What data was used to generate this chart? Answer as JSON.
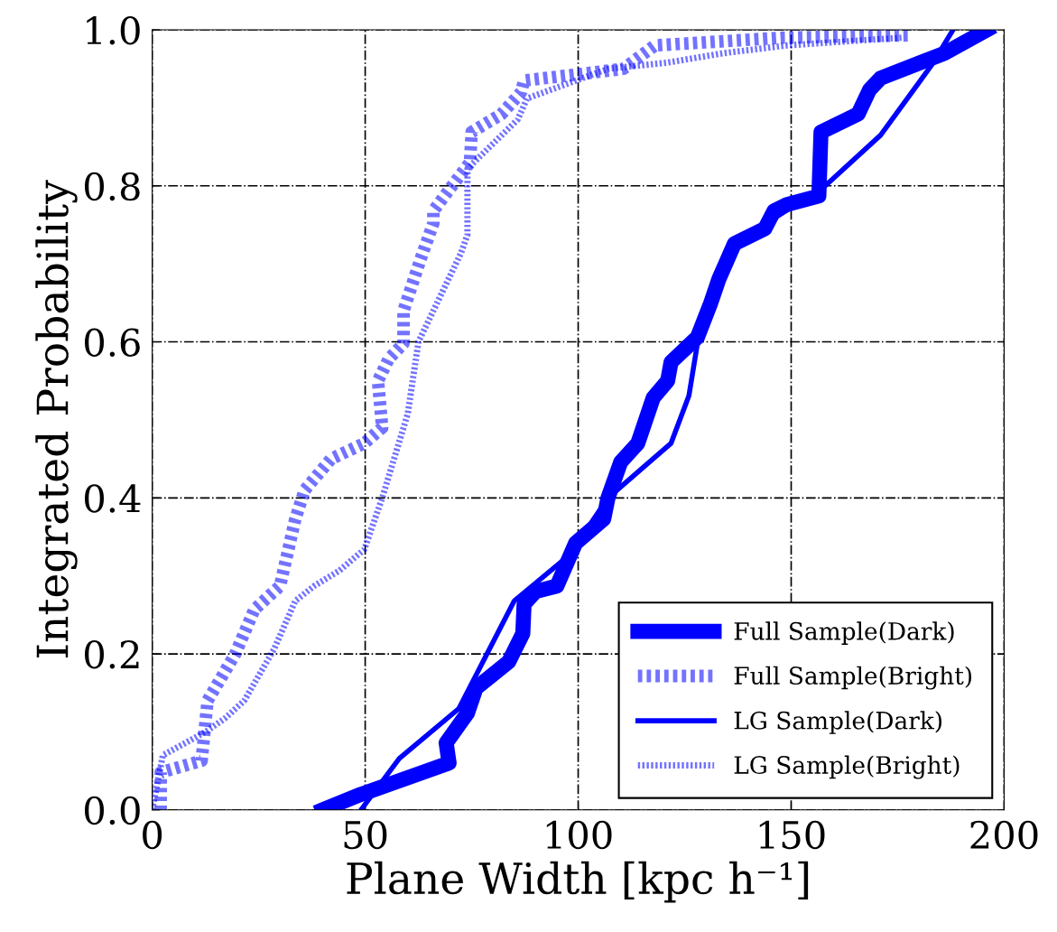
{
  "chart_data": {
    "type": "line",
    "xlabel": "Plane Width [kpc h⁻¹]",
    "ylabel": "Integrated Probability",
    "xlim": [
      0,
      200
    ],
    "ylim": [
      0,
      1.0
    ],
    "xticks": [
      0,
      50,
      100,
      150,
      200
    ],
    "yticks": [
      {
        "value": 0,
        "label": "0.0"
      },
      0.2,
      0.4,
      0.6,
      0.8,
      {
        "value": 1,
        "label": "1.0"
      }
    ],
    "grid": true,
    "legend": "bottom right",
    "marker": "none",
    "series": [
      {
        "name": "Full Sample(Dark)",
        "color": "#0000ff",
        "line_style": "solid",
        "x": [
          40,
          49,
          69.7,
          69,
          74,
          76,
          83.7,
          87,
          87.3,
          90,
          95,
          99.4,
          106,
          107,
          110,
          114,
          117.6,
          121,
          121.8,
          128,
          131,
          133,
          136.7,
          143.8,
          146,
          149,
          156.5,
          157,
          165.7,
          168.4,
          171,
          186,
          196
        ],
        "values": [
          0,
          0.02,
          0.06,
          0.086,
          0.124,
          0.156,
          0.19,
          0.226,
          0.264,
          0.28,
          0.287,
          0.342,
          0.373,
          0.4,
          0.446,
          0.47,
          0.528,
          0.55,
          0.574,
          0.606,
          0.648,
          0.68,
          0.726,
          0.745,
          0.768,
          0.776,
          0.787,
          0.869,
          0.892,
          0.923,
          0.938,
          0.97,
          1.0
        ]
      },
      {
        "name": "Full Sample(Bright)",
        "color": "#0000ff",
        "line_style": "dotted",
        "x": [
          2,
          2,
          11.6,
          13,
          19.5,
          24,
          30,
          33.6,
          35.8,
          42,
          49.8,
          54,
          53,
          55.5,
          59,
          59,
          63,
          66,
          66,
          71.8,
          74.6,
          75,
          82,
          86.6,
          87.3,
          100,
          110.6,
          118,
          148,
          177.8
        ],
        "values": [
          0,
          0.048,
          0.063,
          0.14,
          0.2,
          0.257,
          0.287,
          0.373,
          0.41,
          0.45,
          0.47,
          0.49,
          0.55,
          0.578,
          0.598,
          0.64,
          0.706,
          0.752,
          0.768,
          0.81,
          0.83,
          0.869,
          0.892,
          0.92,
          0.935,
          0.943,
          0.95,
          0.98,
          0.99,
          0.993
        ]
      },
      {
        "name": "LG Sample(Dark)",
        "color": "#0000ff",
        "line_style": "solid",
        "x": [
          49,
          58,
          72,
          85,
          98,
          107,
          121.8,
          126,
          128,
          131,
          133,
          136.7,
          158,
          171,
          183,
          188
        ],
        "values": [
          0,
          0.066,
          0.13,
          0.268,
          0.327,
          0.4,
          0.47,
          0.531,
          0.598,
          0.648,
          0.68,
          0.726,
          0.8,
          0.865,
          0.955,
          1.0
        ]
      },
      {
        "name": "LG Sample(Bright)",
        "color": "#0000ff",
        "line_style": "dotted",
        "x": [
          0,
          2.5,
          12.5,
          17,
          21.6,
          28.6,
          33.6,
          38,
          44,
          49.8,
          54,
          60,
          62.5,
          72.5,
          74,
          74,
          74,
          85.8,
          88,
          107,
          121,
          134,
          149,
          176
        ],
        "values": [
          0,
          0.07,
          0.1,
          0.117,
          0.14,
          0.206,
          0.268,
          0.287,
          0.307,
          0.334,
          0.4,
          0.508,
          0.6,
          0.714,
          0.737,
          0.792,
          0.822,
          0.885,
          0.912,
          0.95,
          0.958,
          0.97,
          0.98,
          0.99
        ]
      }
    ]
  }
}
